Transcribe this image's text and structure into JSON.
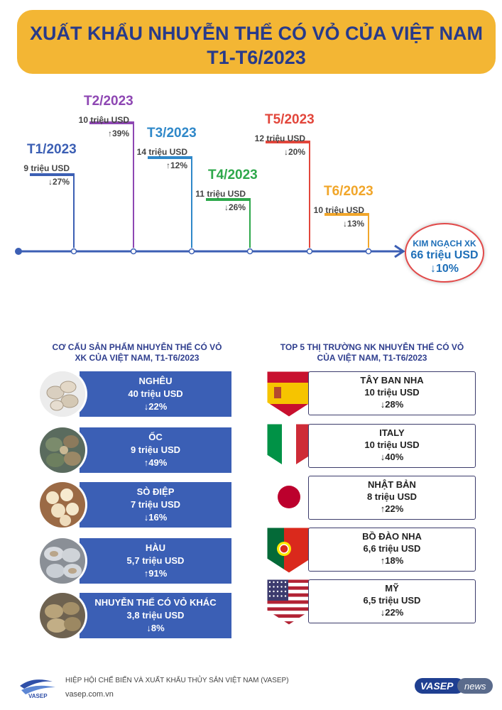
{
  "header": {
    "title": "XUẤT KHẨU NHUYỄN THỂ CÓ VỎ CỦA VIỆT NAM",
    "subtitle": "T1-T6/2023"
  },
  "timeline": [
    {
      "label": "T1/2023",
      "value": "9 triệu USD",
      "change": "↓27%",
      "color": "#3c5fb4"
    },
    {
      "label": "T2/2023",
      "value": "10 triệu USD",
      "change": "↑39%",
      "color": "#8e47b3"
    },
    {
      "label": "T3/2023",
      "value": "14 triệu USD",
      "change": "↑12%",
      "color": "#2f88c9"
    },
    {
      "label": "T4/2023",
      "value": "11 triệu USD",
      "change": "↓26%",
      "color": "#2ea84b"
    },
    {
      "label": "T5/2023",
      "value": "12 triệu USD",
      "change": "↓20%",
      "color": "#e2463b"
    },
    {
      "label": "T6/2023",
      "value": "10 triệu USD",
      "change": "↓13%",
      "color": "#f1a62a"
    }
  ],
  "summary": {
    "line1": "KIM NGẠCH XK",
    "line2": "66 triệu USD",
    "line3": "↓10%"
  },
  "products": {
    "title_line1": "CƠ CẤU SẢN PHẨM NHUYỄN THỂ CÓ VỎ",
    "title_line2": "XK CỦA VIỆT NAM, T1-T6/2023",
    "items": [
      {
        "name": "NGHÊU",
        "value": "40 triệu USD",
        "change": "↓22%",
        "icon": "clam-icon"
      },
      {
        "name": "ỐC",
        "value": "9 triệu USD",
        "change": "↑49%",
        "icon": "snail-icon"
      },
      {
        "name": "SÒ ĐIỆP",
        "value": "7 triệu USD",
        "change": "↓16%",
        "icon": "scallop-icon"
      },
      {
        "name": "HÀU",
        "value": "5,7 triệu USD",
        "change": "↑91%",
        "icon": "oyster-icon"
      },
      {
        "name": "NHUYỄN THỂ CÓ VỎ KHÁC",
        "value": "3,8 triệu USD",
        "change": "↓8%",
        "icon": "abalone-icon"
      }
    ]
  },
  "markets": {
    "title_line1": "TOP 5 THỊ TRƯỜNG NK NHUYỄN THỂ CÓ VỎ",
    "title_line2": "CỦA VIỆT NAM, T1-T6/2023",
    "items": [
      {
        "name": "TÂY BAN NHA",
        "value": "10 triệu USD",
        "change": "↓28%",
        "flag": "spain-flag-icon"
      },
      {
        "name": "ITALY",
        "value": "10 triệu USD",
        "change": "↓40%",
        "flag": "italy-flag-icon"
      },
      {
        "name": "NHẬT BẢN",
        "value": "8 triệu USD",
        "change": "↑22%",
        "flag": "japan-flag-icon"
      },
      {
        "name": "BỒ ĐÀO NHA",
        "value": "6,6 triệu USD",
        "change": "↑18%",
        "flag": "portugal-flag-icon"
      },
      {
        "name": "MỸ",
        "value": "6,5 triệu USD",
        "change": "↓22%",
        "flag": "usa-flag-icon"
      }
    ]
  },
  "footer": {
    "logo_text": "VASEP",
    "org": "HIỆP HỘI CHẾ BIẾN VÀ XUẤT KHẨU THỦY SẢN VIỆT NAM (VASEP)",
    "website": "vasep.com.vn",
    "brand_a": "VASEP",
    "brand_b": "news"
  },
  "colors": {
    "header_bg": "#f3b634",
    "title": "#283a8a",
    "product_bar": "#3b5fb5",
    "timeline_axis": "#3c5fb4",
    "summary": "#1e6fb8",
    "summary_border": "#e24a4a"
  }
}
